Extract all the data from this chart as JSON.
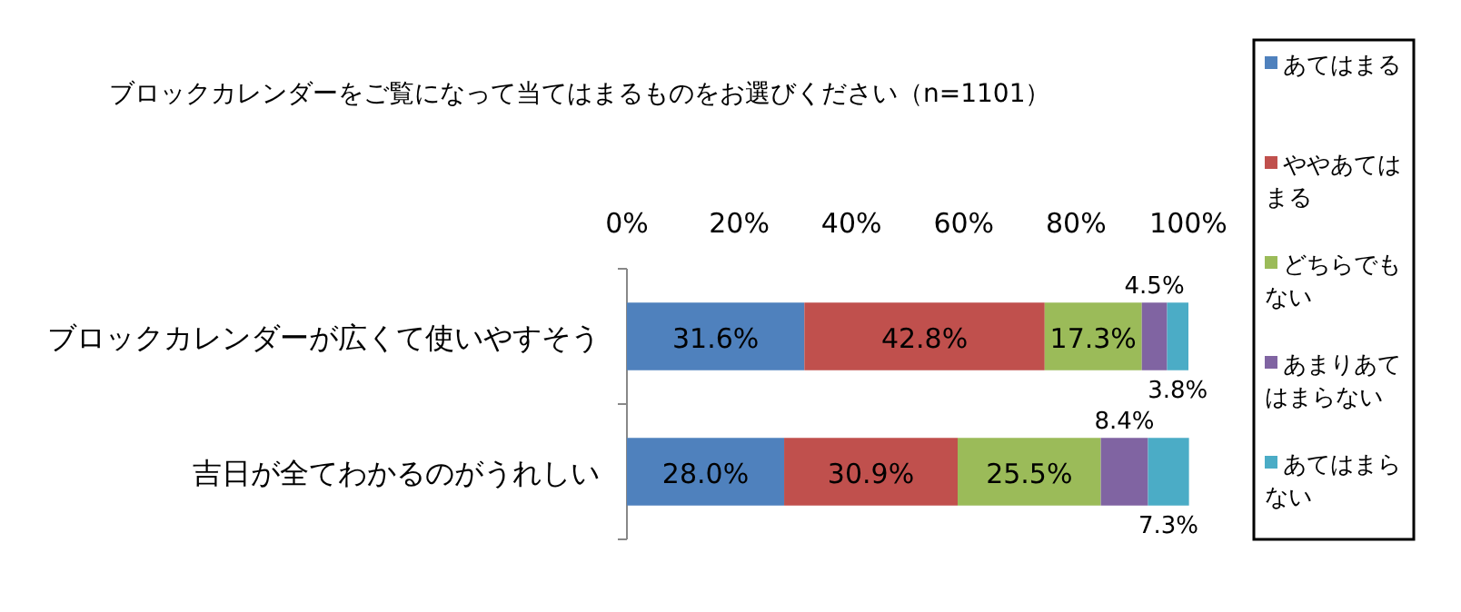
{
  "chart_data": {
    "type": "bar",
    "orientation": "horizontal",
    "stacked": true,
    "title": "ブロックカレンダーをご覧になって当てはまるものをお選びください（n=1101）",
    "categories": [
      "ブロックカレンダーが広くて使いやすそう",
      "吉日が全てわかるのがうれしい"
    ],
    "series": [
      {
        "name": "あてはまる",
        "color": "#4f81bd",
        "values": [
          31.6,
          28.0
        ],
        "value_labels": [
          "31.6%",
          "28.0%"
        ]
      },
      {
        "name": "ややあてはまる",
        "color": "#c0504d",
        "values": [
          42.8,
          30.9
        ],
        "value_labels": [
          "42.8%",
          "30.9%"
        ]
      },
      {
        "name": "どちらでもない",
        "color": "#9bbb59",
        "values": [
          17.3,
          25.5
        ],
        "value_labels": [
          "17.3%",
          "25.5%"
        ]
      },
      {
        "name": "あまりあてはまらない",
        "color": "#8064a2",
        "values": [
          4.5,
          8.4
        ],
        "value_labels": [
          "4.5%",
          "8.4%"
        ]
      },
      {
        "name": "あてはまらない",
        "color": "#4bacc6",
        "values": [
          3.8,
          7.3
        ],
        "value_labels": [
          "3.8%",
          "7.3%"
        ]
      }
    ],
    "xlim": [
      0,
      100
    ],
    "xticks": [
      {
        "value": 0,
        "label": "0%"
      },
      {
        "value": 20,
        "label": "20%"
      },
      {
        "value": 40,
        "label": "40%"
      },
      {
        "value": 60,
        "label": "60%"
      },
      {
        "value": 80,
        "label": "80%"
      },
      {
        "value": 100,
        "label": "100%"
      }
    ],
    "legend": "right",
    "grid": false
  }
}
